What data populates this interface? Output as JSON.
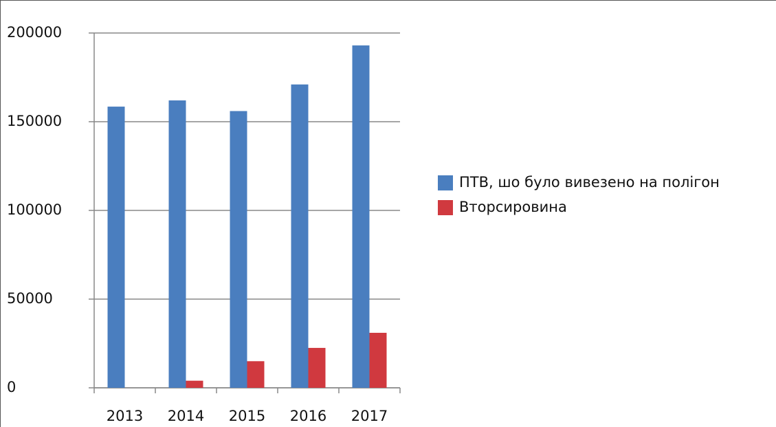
{
  "chart_data": {
    "type": "bar",
    "categories": [
      "2013",
      "2014",
      "2015",
      "2016",
      "2017"
    ],
    "series": [
      {
        "name": "ПТВ, шо було вивезено на полігон",
        "color": "#4a7ebf",
        "values": [
          158500,
          162000,
          156000,
          171000,
          193000
        ]
      },
      {
        "name": "Вторсировина",
        "color": "#d0393f",
        "values": [
          0,
          4000,
          15000,
          22500,
          31000
        ]
      }
    ],
    "ylim": [
      0,
      200000
    ],
    "yticks": [
      0,
      50000,
      100000,
      150000,
      200000
    ],
    "grid": true,
    "legend": "right"
  }
}
